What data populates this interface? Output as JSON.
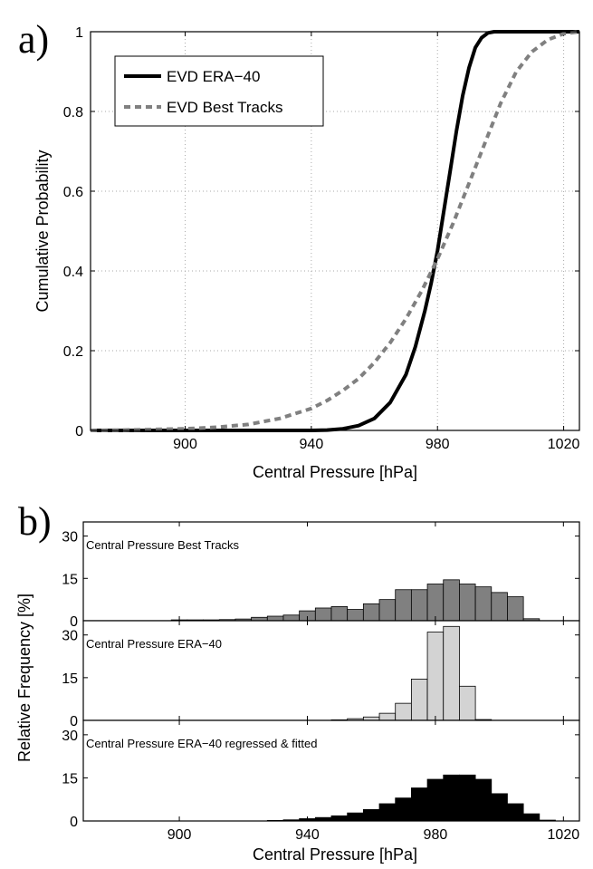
{
  "chart_data": [
    {
      "panel_label": "a)",
      "type": "line",
      "xlabel": "Central Pressure [hPa]",
      "ylabel": "Cumulative Probability",
      "xlim": [
        870,
        1025
      ],
      "ylim": [
        0,
        1
      ],
      "xticks": [
        900,
        940,
        980,
        1020
      ],
      "yticks": [
        0,
        0.2,
        0.4,
        0.6,
        0.8,
        1
      ],
      "xtick_labels": [
        "900",
        "940",
        "980",
        "1020"
      ],
      "ytick_labels": [
        "0",
        "0.2",
        "0.4",
        "0.6",
        "0.8",
        "1"
      ],
      "grid": true,
      "legend_position": "top-left",
      "series": [
        {
          "name": "EVD ERA−40",
          "style": "solid",
          "color": "#000000",
          "x": [
            870,
            940,
            945,
            950,
            955,
            960,
            965,
            970,
            973,
            976,
            978,
            980,
            982,
            984,
            986,
            988,
            990,
            992,
            994,
            996,
            998,
            1000,
            1025
          ],
          "y": [
            0,
            0.0,
            0.001,
            0.004,
            0.012,
            0.03,
            0.07,
            0.14,
            0.21,
            0.3,
            0.37,
            0.45,
            0.55,
            0.65,
            0.75,
            0.84,
            0.91,
            0.96,
            0.985,
            0.997,
            1.0,
            1.0,
            1.0
          ]
        },
        {
          "name": "EVD Best Tracks",
          "style": "dashed",
          "color": "#808080",
          "x": [
            870,
            880,
            900,
            910,
            920,
            930,
            940,
            945,
            950,
            955,
            960,
            965,
            970,
            975,
            980,
            985,
            990,
            995,
            1000,
            1005,
            1010,
            1015,
            1020,
            1025
          ],
          "y": [
            0,
            0.001,
            0.004,
            0.008,
            0.015,
            0.03,
            0.055,
            0.075,
            0.1,
            0.13,
            0.17,
            0.22,
            0.28,
            0.35,
            0.43,
            0.52,
            0.62,
            0.72,
            0.82,
            0.9,
            0.95,
            0.98,
            0.995,
            1.0
          ]
        }
      ]
    },
    {
      "panel_label": "b)",
      "type": "bar",
      "xlabel": "Central Pressure [hPa]",
      "ylabel": "Relative Frequency [%]",
      "xlim": [
        870,
        1025
      ],
      "ylim": [
        0,
        35
      ],
      "xticks": [
        900,
        940,
        980,
        1020
      ],
      "xtick_labels": [
        "900",
        "940",
        "980",
        "1020"
      ],
      "yticks": [
        0,
        15,
        30
      ],
      "ytick_labels": [
        "0",
        "15",
        "30"
      ],
      "bin_width": 5,
      "bin_centers": [
        875,
        880,
        885,
        890,
        895,
        900,
        905,
        910,
        915,
        920,
        925,
        930,
        935,
        940,
        945,
        950,
        955,
        960,
        965,
        970,
        975,
        980,
        985,
        990,
        995,
        1000,
        1005,
        1010,
        1015,
        1020
      ],
      "subplots": [
        {
          "title": "Central Pressure Best Tracks",
          "color": "#808080",
          "values": [
            0,
            0,
            0,
            0,
            0,
            0.3,
            0.3,
            0.3,
            0.4,
            0.6,
            1.2,
            1.6,
            2.0,
            3.5,
            4.5,
            5.0,
            4.0,
            6.0,
            7.5,
            11.0,
            11.0,
            13.0,
            14.5,
            13.0,
            12.0,
            10.0,
            8.5,
            0.7,
            0,
            0
          ]
        },
        {
          "title": "Central Pressure ERA−40",
          "color": "#d3d3d3",
          "values": [
            0,
            0,
            0,
            0,
            0,
            0,
            0,
            0,
            0,
            0,
            0,
            0,
            0,
            0,
            0,
            0.2,
            0.6,
            1.2,
            2.5,
            6.0,
            14.5,
            31.0,
            33.0,
            12.0,
            0.3,
            0,
            0,
            0,
            0,
            0
          ]
        },
        {
          "title": "Central Pressure ERA−40 regressed & fitted",
          "color": "#000000",
          "values": [
            0,
            0,
            0,
            0,
            0,
            0,
            0,
            0,
            0,
            0,
            0,
            0.2,
            0.4,
            0.8,
            1.2,
            1.8,
            2.8,
            4.0,
            6.0,
            8.0,
            11.5,
            14.5,
            16.0,
            16.0,
            14.5,
            9.5,
            6.0,
            2.5,
            0.3,
            0
          ]
        }
      ]
    }
  ]
}
